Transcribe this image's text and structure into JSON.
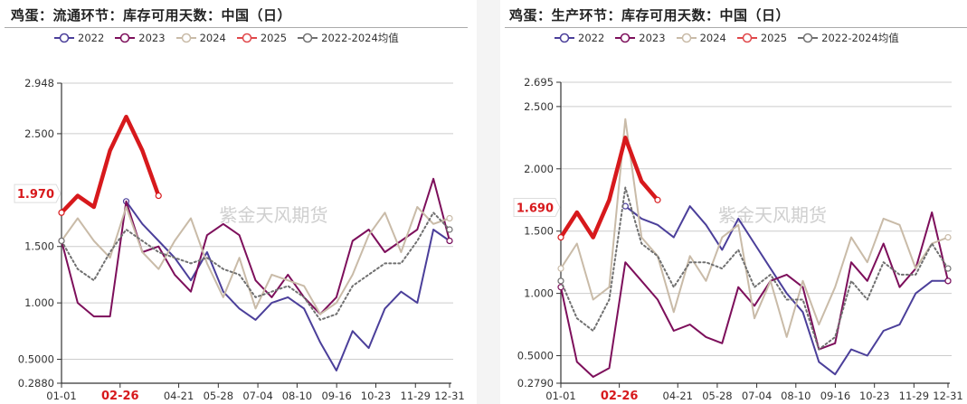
{
  "colors": {
    "y2022": "#4b3f9a",
    "y2023": "#7d0f5b",
    "y2024": "#c9bba8",
    "y2025": "#d7191c",
    "avg": "#707070",
    "grid": "#cccccc",
    "axis": "#333333",
    "highlight": "#d7191c"
  },
  "watermark": "紫金天风期货",
  "legend": [
    {
      "label": "2022",
      "color_key": "y2022",
      "icon": "circle-line-icon"
    },
    {
      "label": "2023",
      "color_key": "y2023",
      "icon": "circle-line-icon"
    },
    {
      "label": "2024",
      "color_key": "y2024",
      "icon": "circle-line-icon"
    },
    {
      "label": "2025",
      "color_key": "y2025",
      "icon": "circle-line-icon"
    },
    {
      "label": "2022-2024均值",
      "color_key": "avg",
      "icon": "circle-line-icon"
    }
  ],
  "charts": [
    {
      "title": "鸡蛋：流通环节：库存可用天数：中国（日）",
      "highlight_y_label": "1.970",
      "highlight_x_label": "02-26"
    },
    {
      "title": "鸡蛋：生产环节：库存可用天数：中国（日）",
      "highlight_y_label": "1.690",
      "highlight_x_label": "02-26"
    }
  ],
  "chart_data": [
    {
      "type": "line",
      "title": "鸡蛋：流通环节：库存可用天数：中国（日）",
      "xlabel": "",
      "ylabel": "",
      "ylim": [
        0.288,
        2.948
      ],
      "y_ticks": [
        "2.948",
        "2.500",
        "1.970",
        "1.500",
        "1.000",
        "0.5000",
        "0.2880"
      ],
      "x_ticks": [
        "01-01",
        "02-26",
        "04-21",
        "05-28",
        "07-04",
        "08-10",
        "09-16",
        "10-23",
        "11-29",
        "12-31"
      ],
      "grid": true,
      "legend_position": "top",
      "x": [
        "01-01",
        "01-15",
        "02-01",
        "02-15",
        "03-01",
        "03-15",
        "04-01",
        "04-15",
        "05-01",
        "05-15",
        "06-01",
        "06-15",
        "07-01",
        "07-15",
        "08-01",
        "08-15",
        "09-01",
        "09-15",
        "10-01",
        "10-15",
        "11-01",
        "11-15",
        "12-01",
        "12-15",
        "12-31"
      ],
      "series": [
        {
          "name": "2022",
          "values": [
            null,
            null,
            null,
            null,
            1.9,
            1.7,
            1.55,
            1.4,
            1.2,
            1.45,
            1.1,
            0.95,
            0.85,
            1.0,
            1.05,
            0.95,
            0.65,
            0.4,
            0.75,
            0.6,
            0.95,
            1.1,
            1.0,
            1.65,
            1.55
          ]
        },
        {
          "name": "2023",
          "values": [
            1.55,
            1.0,
            0.88,
            0.88,
            1.9,
            1.45,
            1.5,
            1.25,
            1.1,
            1.6,
            1.7,
            1.6,
            1.2,
            1.05,
            1.25,
            1.05,
            0.9,
            1.05,
            1.55,
            1.65,
            1.45,
            1.55,
            1.65,
            2.1,
            1.55
          ]
        },
        {
          "name": "2024",
          "values": [
            1.55,
            1.75,
            1.55,
            1.4,
            1.85,
            1.45,
            1.3,
            1.55,
            1.75,
            1.35,
            1.05,
            1.4,
            0.95,
            1.25,
            1.2,
            1.15,
            0.9,
            1.0,
            1.25,
            1.6,
            1.8,
            1.45,
            1.85,
            1.7,
            1.75
          ]
        },
        {
          "name": "2025",
          "values": [
            1.8,
            1.95,
            1.85,
            2.35,
            2.65,
            2.35,
            1.95,
            null,
            null,
            null,
            null,
            null,
            null,
            null,
            null,
            null,
            null,
            null,
            null,
            null,
            null,
            null,
            null,
            null,
            null
          ]
        },
        {
          "name": "2022-2024均值",
          "values": [
            1.55,
            1.3,
            1.2,
            1.45,
            1.65,
            1.55,
            1.45,
            1.4,
            1.35,
            1.4,
            1.3,
            1.25,
            1.05,
            1.1,
            1.15,
            1.05,
            0.85,
            0.9,
            1.15,
            1.25,
            1.35,
            1.35,
            1.55,
            1.8,
            1.65
          ]
        }
      ]
    },
    {
      "type": "line",
      "title": "鸡蛋：生产环节：库存可用天数：中国（日）",
      "xlabel": "",
      "ylabel": "",
      "ylim": [
        0.279,
        2.695
      ],
      "y_ticks": [
        "2.695",
        "2.500",
        "2.000",
        "1.690",
        "1.500",
        "1.000",
        "0.5000",
        "0.2790"
      ],
      "x_ticks": [
        "01-01",
        "02-26",
        "04-21",
        "05-28",
        "07-04",
        "08-10",
        "09-16",
        "10-23",
        "11-29",
        "12-31"
      ],
      "grid": true,
      "legend_position": "top",
      "x": [
        "01-01",
        "01-15",
        "02-01",
        "02-15",
        "03-01",
        "03-15",
        "04-01",
        "04-15",
        "05-01",
        "05-15",
        "06-01",
        "06-15",
        "07-01",
        "07-15",
        "08-01",
        "08-15",
        "09-01",
        "09-15",
        "10-01",
        "10-15",
        "11-01",
        "11-15",
        "12-01",
        "12-15",
        "12-31"
      ],
      "series": [
        {
          "name": "2022",
          "values": [
            null,
            null,
            null,
            null,
            1.7,
            1.6,
            1.55,
            1.45,
            1.7,
            1.55,
            1.35,
            1.6,
            1.4,
            1.2,
            1.0,
            0.85,
            0.45,
            0.35,
            0.55,
            0.5,
            0.7,
            0.75,
            1.0,
            1.1,
            1.1
          ]
        },
        {
          "name": "2023",
          "values": [
            1.05,
            0.45,
            0.33,
            0.4,
            1.25,
            1.1,
            0.95,
            0.7,
            0.75,
            0.65,
            0.6,
            1.05,
            0.9,
            1.1,
            1.15,
            1.05,
            0.55,
            0.6,
            1.25,
            1.1,
            1.4,
            1.05,
            1.2,
            1.65,
            1.1
          ]
        },
        {
          "name": "2024",
          "values": [
            1.2,
            1.4,
            0.95,
            1.05,
            2.4,
            1.45,
            1.3,
            0.85,
            1.3,
            1.1,
            1.45,
            1.55,
            0.8,
            1.1,
            0.65,
            1.1,
            0.75,
            1.05,
            1.45,
            1.25,
            1.6,
            1.55,
            1.2,
            1.4,
            1.45
          ]
        },
        {
          "name": "2025",
          "values": [
            1.45,
            1.65,
            1.45,
            1.75,
            2.25,
            1.9,
            1.75,
            null,
            null,
            null,
            null,
            null,
            null,
            null,
            null,
            null,
            null,
            null,
            null,
            null,
            null,
            null,
            null,
            null,
            null
          ]
        },
        {
          "name": "2022-2024均值",
          "values": [
            1.1,
            0.8,
            0.7,
            0.95,
            1.85,
            1.4,
            1.3,
            1.05,
            1.25,
            1.25,
            1.2,
            1.35,
            1.05,
            1.15,
            0.95,
            0.95,
            0.55,
            0.65,
            1.1,
            0.95,
            1.25,
            1.15,
            1.15,
            1.4,
            1.2
          ]
        }
      ]
    }
  ]
}
